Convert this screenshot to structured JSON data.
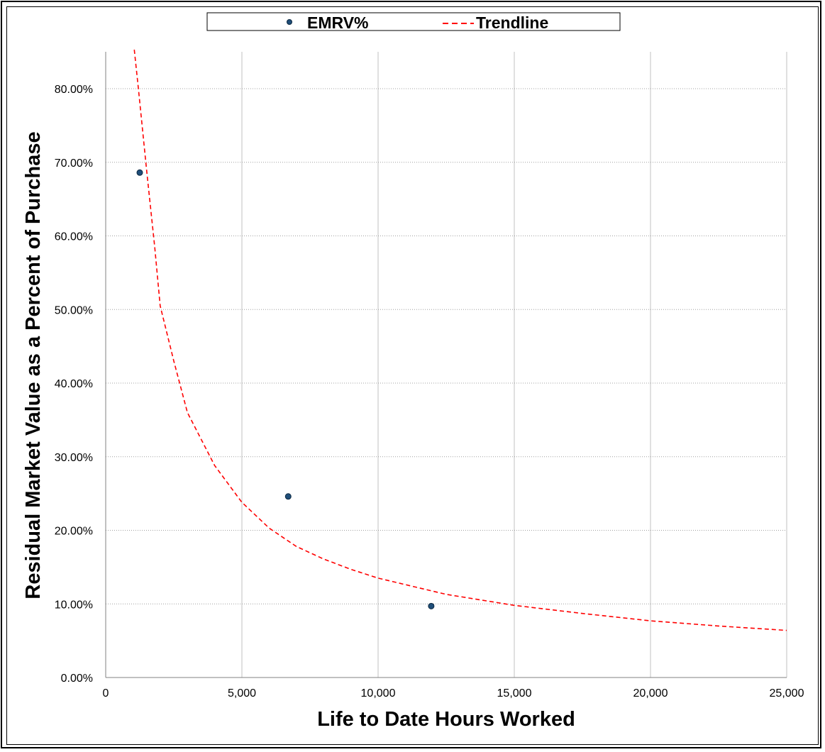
{
  "chart_data": {
    "type": "scatter",
    "xlabel": "Life to Date Hours Worked",
    "ylabel": "Residual Market Value as a Percent of Purchase",
    "xlim": [
      0,
      25000
    ],
    "ylim": [
      0,
      0.85
    ],
    "x_ticks": [
      0,
      5000,
      10000,
      15000,
      20000,
      25000
    ],
    "x_tick_labels": [
      "0",
      "5,000",
      "10,000",
      "15,000",
      "20,000",
      "25,000"
    ],
    "y_ticks": [
      0,
      0.1,
      0.2,
      0.3,
      0.4,
      0.5,
      0.6,
      0.7,
      0.8
    ],
    "y_tick_labels": [
      "0.00%",
      "10.00%",
      "20.00%",
      "30.00%",
      "40.00%",
      "50.00%",
      "60.00%",
      "70.00%",
      "80.00%"
    ],
    "grid": "vertical and horizontal",
    "legend_position": "top",
    "series": [
      {
        "name": "EMRV%",
        "kind": "scatter",
        "color": "#1f4e79",
        "points": [
          {
            "x": 1250,
            "y": 0.686
          },
          {
            "x": 6700,
            "y": 0.246
          },
          {
            "x": 11950,
            "y": 0.097
          }
        ]
      },
      {
        "name": "Trendline",
        "kind": "line",
        "style": "dashed",
        "color": "#ff0000",
        "points": [
          {
            "x": 1050,
            "y": 0.853
          },
          {
            "x": 1200,
            "y": 0.8
          },
          {
            "x": 1500,
            "y": 0.69
          },
          {
            "x": 1800,
            "y": 0.585
          },
          {
            "x": 2000,
            "y": 0.505
          },
          {
            "x": 2500,
            "y": 0.43
          },
          {
            "x": 3000,
            "y": 0.36
          },
          {
            "x": 4000,
            "y": 0.288
          },
          {
            "x": 5000,
            "y": 0.238
          },
          {
            "x": 6000,
            "y": 0.203
          },
          {
            "x": 7000,
            "y": 0.178
          },
          {
            "x": 8000,
            "y": 0.161
          },
          {
            "x": 9000,
            "y": 0.147
          },
          {
            "x": 10000,
            "y": 0.135
          },
          {
            "x": 12500,
            "y": 0.113
          },
          {
            "x": 15000,
            "y": 0.098
          },
          {
            "x": 17500,
            "y": 0.087
          },
          {
            "x": 20000,
            "y": 0.077
          },
          {
            "x": 22500,
            "y": 0.07
          },
          {
            "x": 25000,
            "y": 0.064
          }
        ]
      }
    ]
  }
}
